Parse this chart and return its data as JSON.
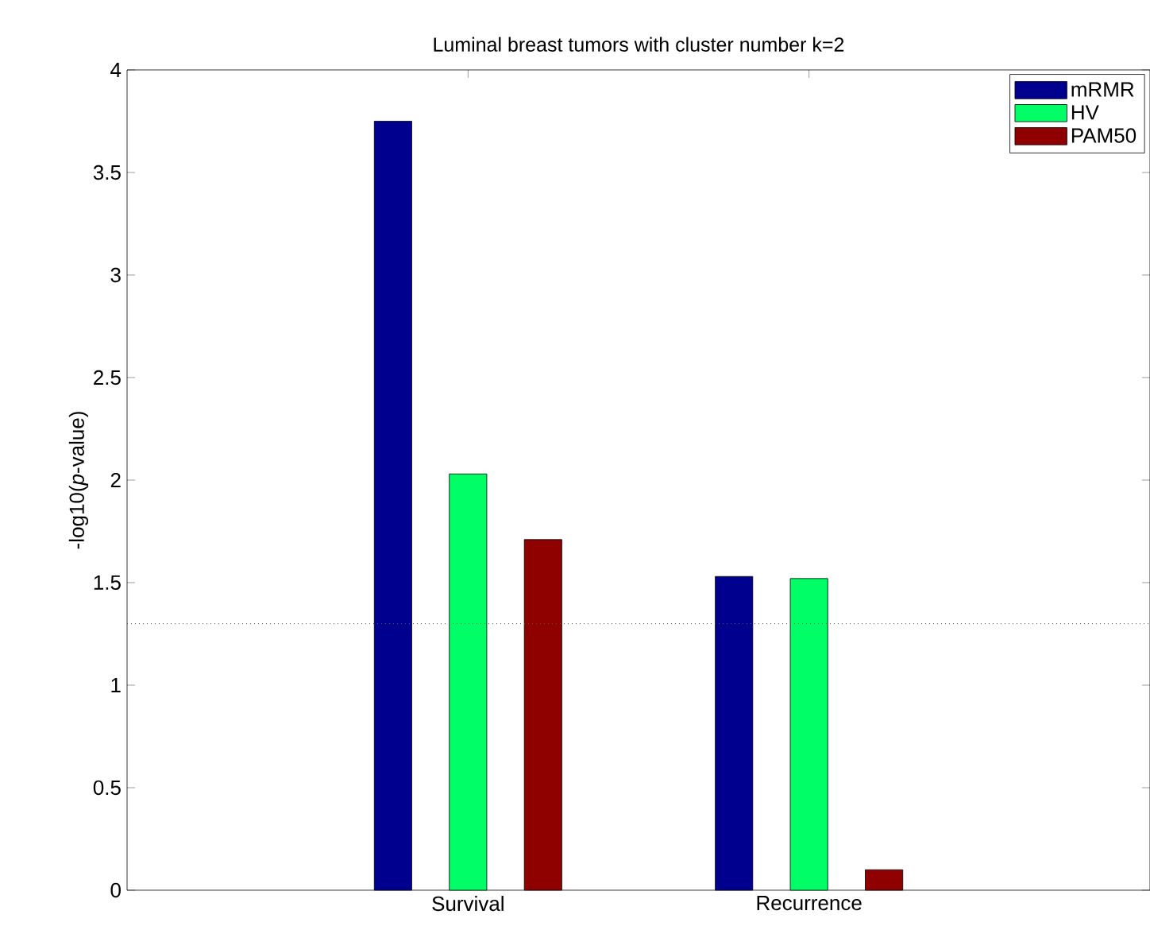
{
  "chart_data": {
    "type": "bar",
    "title": "Luminal breast tumors with cluster number k=2",
    "ylabel": "-log10(*p*-value)",
    "categories": [
      "Survival",
      "Recurrence"
    ],
    "series": [
      {
        "name": "mRMR",
        "color": "#00008f",
        "values": [
          3.75,
          1.53
        ]
      },
      {
        "name": "HV",
        "color": "#00ff66",
        "values": [
          2.03,
          1.52
        ]
      },
      {
        "name": "PAM50",
        "color": "#8f0000",
        "values": [
          1.71,
          0.1
        ]
      }
    ],
    "ylim": [
      0,
      4
    ],
    "yticks": [
      0,
      0.5,
      1,
      1.5,
      2,
      2.5,
      3,
      3.5,
      4
    ],
    "ref_lines": [
      {
        "axis": "y",
        "value": 1.3,
        "line_style": "dotted",
        "color": "#555555"
      }
    ],
    "legend": "top right"
  }
}
